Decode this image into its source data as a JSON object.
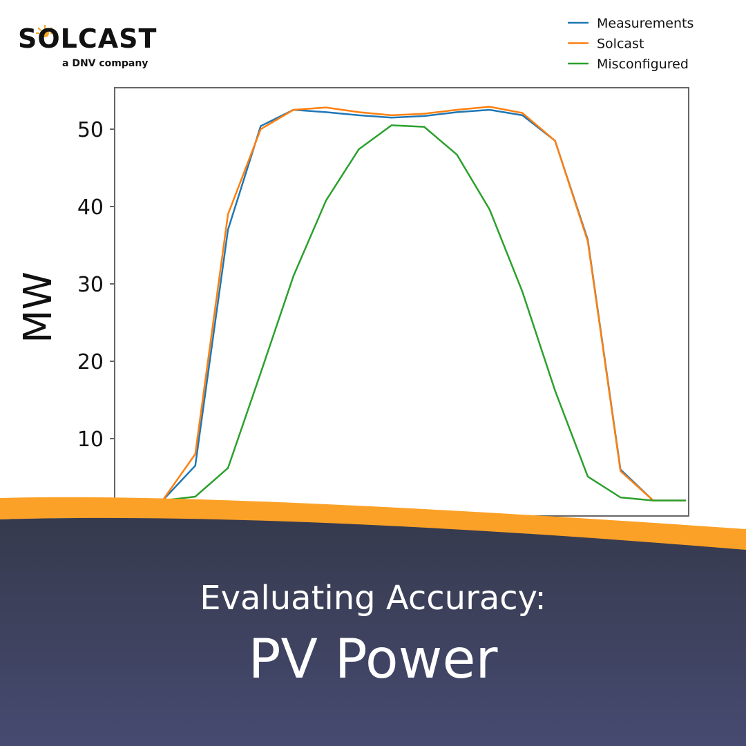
{
  "brand": {
    "name": "SOLCAST",
    "tagline": "a DNV company",
    "sun_color": "#f5a623"
  },
  "title": {
    "line1": "Evaluating Accuracy:",
    "line2": "PV Power"
  },
  "colors": {
    "accent_band": "#fca127",
    "background_dark_top": "#363a4d",
    "background_dark_bottom": "#464a70"
  },
  "chart_data": {
    "type": "line",
    "title": "",
    "xlabel": "",
    "ylabel": "MW",
    "x": [
      0,
      1,
      2,
      3,
      4,
      5,
      6,
      7,
      8,
      9,
      10,
      11,
      12,
      13,
      14,
      15,
      16,
      17
    ],
    "ylim": [
      0,
      55.5
    ],
    "yticks": [
      10,
      20,
      30,
      40,
      50
    ],
    "grid": false,
    "legend": "top-right",
    "series": [
      {
        "name": "Measurements",
        "color": "#1f77b4",
        "values": [
          2,
          2,
          6.5,
          37,
          50.4,
          52.5,
          52.2,
          51.8,
          51.5,
          51.7,
          52.2,
          52.5,
          51.8,
          48.5,
          35.7,
          6.0,
          2,
          2
        ]
      },
      {
        "name": "Solcast",
        "color": "#ff7f0e",
        "values": [
          2,
          2,
          8,
          39,
          50,
          52.5,
          52.8,
          52.2,
          51.8,
          52.0,
          52.5,
          52.9,
          52.1,
          48.5,
          35.5,
          5.8,
          2,
          2
        ]
      },
      {
        "name": "Misconfigured",
        "color": "#2ca02c",
        "values": [
          2,
          2,
          2.5,
          6.2,
          18.5,
          31,
          40.8,
          47.4,
          50.5,
          50.3,
          46.7,
          39.6,
          29,
          16.2,
          5.1,
          2.4,
          2,
          2
        ]
      }
    ]
  }
}
